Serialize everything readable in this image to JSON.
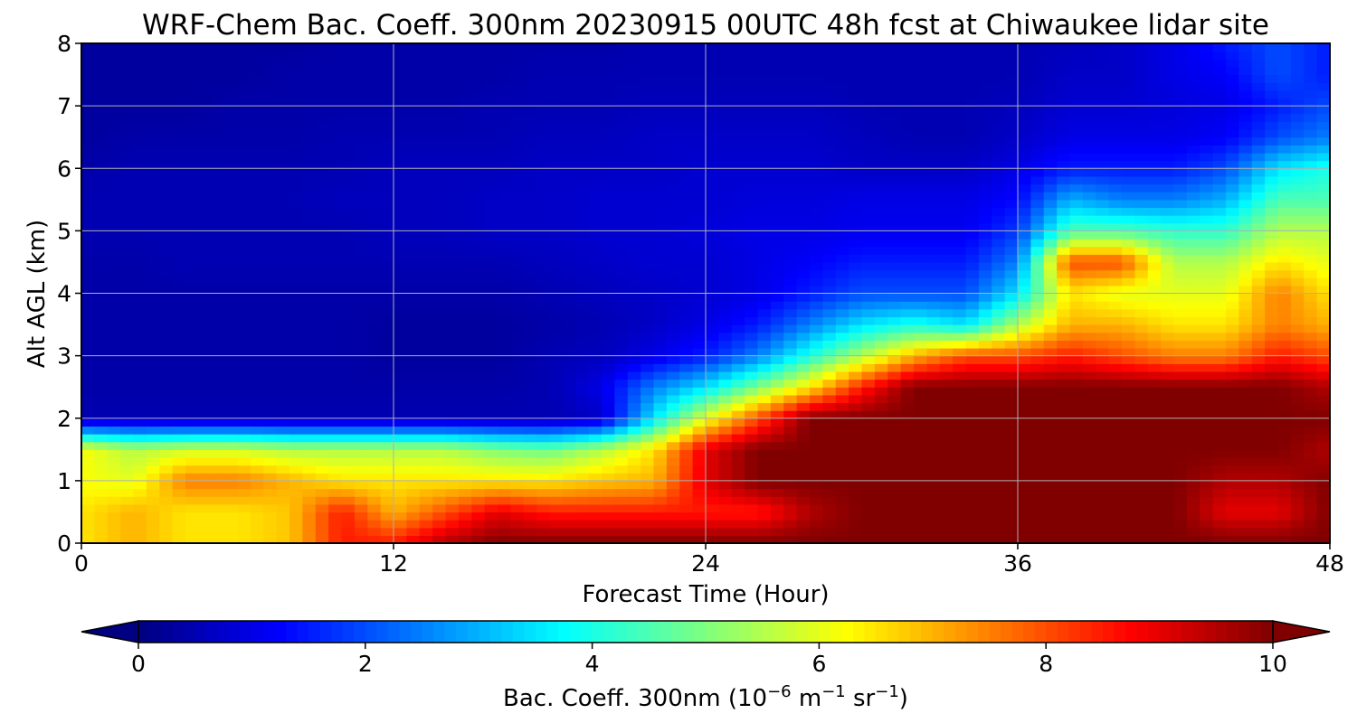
{
  "chart_data": {
    "type": "heatmap",
    "title": "WRF-Chem Bac. Coeff. 300nm  20230915 00UTC 48h fcst at Chiwaukee lidar site",
    "xlabel": "Forecast Time (Hour)",
    "ylabel": "Alt AGL (km)",
    "xlim": [
      0,
      48
    ],
    "ylim": [
      0,
      8
    ],
    "xticks": [
      "0",
      "12",
      "24",
      "36",
      "48"
    ],
    "yticks": [
      "0",
      "1",
      "2",
      "3",
      "4",
      "5",
      "6",
      "7",
      "8"
    ],
    "grid": true,
    "colormap": "jet",
    "colorbar": {
      "label_main": "Bac. Coeff. 300nm  (10",
      "label_exp1": "−6",
      "label_mid": " m",
      "label_exp2": "−1",
      "label_end": " sr",
      "label_exp3": "−1",
      "label_close": ")",
      "range": [
        0,
        10
      ],
      "ticks": [
        "0",
        "2",
        "4",
        "6",
        "8",
        "10"
      ],
      "extend": "both",
      "orientation": "horizontal"
    },
    "x_hours": [
      0,
      2,
      4,
      6,
      8,
      10,
      12,
      14,
      16,
      18,
      20,
      22,
      24,
      26,
      28,
      30,
      32,
      34,
      36,
      38,
      40,
      42,
      44,
      46,
      48
    ],
    "z_km": [
      0,
      0.5,
      1,
      1.5,
      2,
      2.5,
      3,
      3.5,
      4,
      4.5,
      5,
      5.5,
      6,
      6.5,
      7,
      7.5,
      8
    ],
    "values": [
      [
        6.5,
        7,
        6.5,
        6.5,
        6.8,
        8.5,
        8.5,
        9.5,
        10,
        10,
        10,
        10,
        10,
        10,
        10,
        10,
        10,
        10,
        10,
        10,
        10,
        10,
        10,
        10,
        10
      ],
      [
        6.5,
        7,
        6.5,
        6.5,
        6.8,
        8.5,
        7,
        8,
        9,
        8.5,
        8.5,
        8.5,
        8.5,
        8.5,
        9.5,
        10,
        10,
        10,
        10,
        10,
        10,
        10,
        9,
        9,
        10
      ],
      [
        6.2,
        6,
        7.5,
        7.5,
        7,
        6.5,
        6.5,
        6.5,
        6.5,
        6.5,
        6.8,
        7,
        9,
        10,
        10,
        10,
        10,
        10,
        10,
        10,
        10,
        10,
        9.5,
        9.5,
        10
      ],
      [
        6.2,
        5.5,
        5.8,
        5.8,
        5.5,
        5.5,
        5.5,
        5.5,
        5,
        4.8,
        5.5,
        6.5,
        9,
        10,
        10,
        10,
        10,
        10,
        10,
        10,
        10,
        10,
        10,
        10,
        9.5
      ],
      [
        0.5,
        0.5,
        0.5,
        0.5,
        0.5,
        0.5,
        0.5,
        0.5,
        0.5,
        0.5,
        0.7,
        3.5,
        6,
        8,
        10,
        10,
        10,
        10,
        10,
        10,
        10,
        10,
        10,
        10,
        10
      ],
      [
        0.4,
        0.4,
        0.4,
        0.4,
        0.4,
        0.4,
        0.4,
        0.4,
        0.4,
        0.5,
        1,
        2.5,
        3.5,
        5,
        6.5,
        8.5,
        10,
        10,
        10,
        10,
        10,
        10,
        10,
        10,
        9.5
      ],
      [
        0.4,
        0.4,
        0.4,
        0.4,
        0.4,
        0.4,
        0.3,
        0.3,
        0.3,
        0.5,
        0.6,
        1,
        1.5,
        2.5,
        4,
        5.5,
        7,
        8,
        8,
        8.5,
        8,
        7.5,
        7.5,
        8.5,
        8
      ],
      [
        0.4,
        0.4,
        0.4,
        0.4,
        0.4,
        0.4,
        0.3,
        0.3,
        0.3,
        0.4,
        0.5,
        0.7,
        1,
        1.5,
        2.5,
        3.5,
        4,
        3.5,
        5.5,
        7,
        7,
        6.5,
        6.5,
        7.5,
        7
      ],
      [
        0.4,
        0.4,
        0.4,
        0.4,
        0.4,
        0.4,
        0.4,
        0.4,
        0.4,
        0.5,
        0.6,
        0.7,
        0.8,
        1,
        1.5,
        2,
        2,
        2,
        3.5,
        6.5,
        6,
        6,
        6,
        7.5,
        6.5
      ],
      [
        0.4,
        0.4,
        0.5,
        0.5,
        0.5,
        0.5,
        0.5,
        0.5,
        0.5,
        0.6,
        0.7,
        0.8,
        0.8,
        1,
        1.2,
        1.5,
        1.5,
        1.5,
        2.5,
        8,
        8,
        5.5,
        5.5,
        6.5,
        6
      ],
      [
        0.5,
        0.5,
        0.5,
        0.5,
        0.5,
        0.5,
        0.6,
        0.6,
        0.7,
        0.7,
        0.8,
        0.8,
        0.9,
        1,
        1,
        1.1,
        1.1,
        1.1,
        1.8,
        4.5,
        4.5,
        4.2,
        4.2,
        5.5,
        5.5
      ],
      [
        0.5,
        0.5,
        0.5,
        0.5,
        0.5,
        0.6,
        0.6,
        0.6,
        0.7,
        0.7,
        0.8,
        0.8,
        0.8,
        0.9,
        0.9,
        1,
        1,
        1,
        1.3,
        3,
        2.5,
        2.5,
        3,
        4.5,
        4.5
      ],
      [
        0.4,
        0.5,
        0.5,
        0.5,
        0.5,
        0.5,
        0.6,
        0.6,
        0.6,
        0.7,
        0.7,
        0.7,
        0.8,
        0.8,
        0.8,
        0.7,
        0.7,
        0.7,
        1,
        1.5,
        1.5,
        1.5,
        2,
        3.5,
        4
      ],
      [
        0.3,
        0.4,
        0.4,
        0.4,
        0.4,
        0.5,
        0.5,
        0.5,
        0.5,
        0.6,
        0.6,
        0.7,
        0.7,
        0.7,
        0.7,
        0.6,
        0.5,
        0.5,
        0.7,
        1,
        1,
        1,
        1.2,
        2,
        2.5
      ],
      [
        0.3,
        0.3,
        0.3,
        0.4,
        0.4,
        0.4,
        0.4,
        0.4,
        0.5,
        0.5,
        0.5,
        0.6,
        0.6,
        0.6,
        0.6,
        0.5,
        0.5,
        0.5,
        0.6,
        0.8,
        0.8,
        0.9,
        1,
        1.5,
        2
      ],
      [
        0.3,
        0.3,
        0.3,
        0.3,
        0.4,
        0.4,
        0.4,
        0.4,
        0.4,
        0.5,
        0.5,
        0.5,
        0.5,
        0.5,
        0.5,
        0.5,
        0.5,
        0.5,
        0.5,
        0.7,
        0.7,
        1,
        1.2,
        2,
        1.5
      ],
      [
        0.3,
        0.3,
        0.3,
        0.3,
        0.3,
        0.4,
        0.4,
        0.4,
        0.4,
        0.4,
        0.4,
        0.5,
        0.5,
        0.5,
        0.5,
        0.5,
        0.5,
        0.5,
        0.5,
        0.6,
        0.7,
        1,
        1.5,
        2,
        1.5
      ]
    ]
  }
}
